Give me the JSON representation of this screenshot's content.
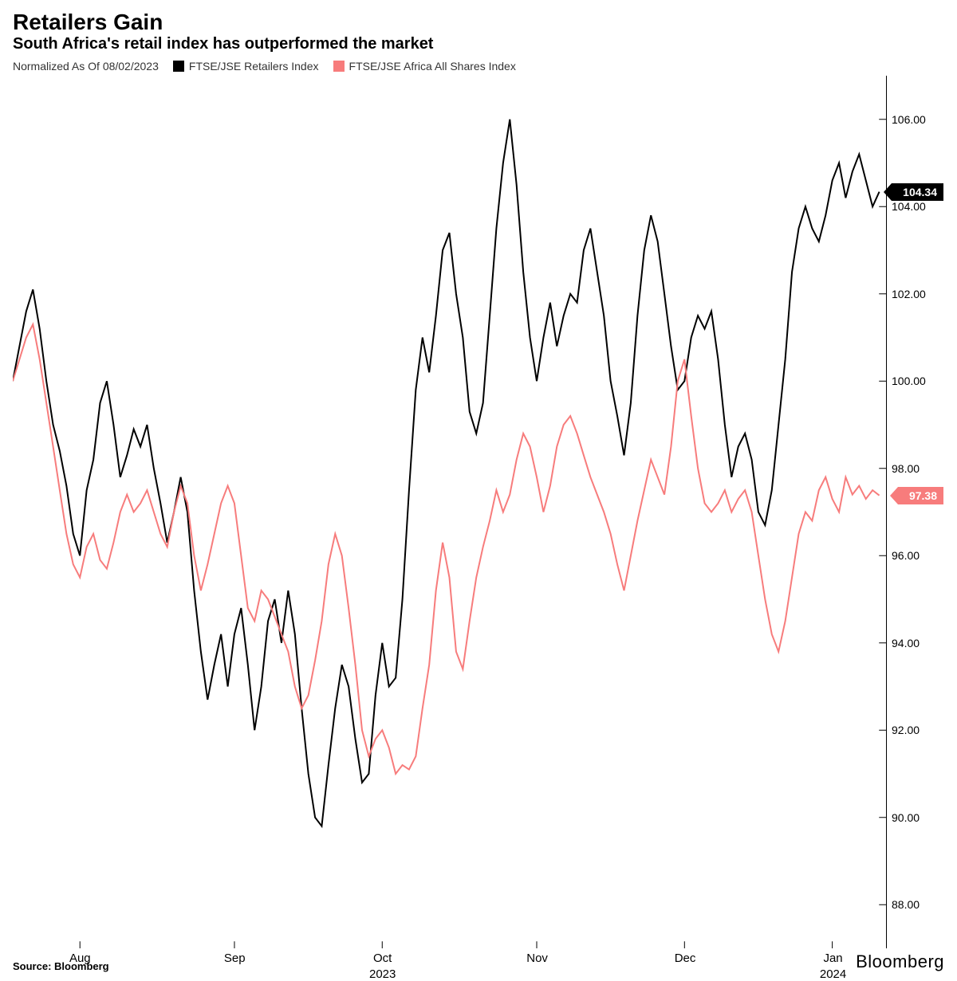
{
  "title": "Retailers Gain",
  "subtitle": "South Africa's retail index has outperformed the market",
  "legend": {
    "norm": "Normalized As Of 08/02/2023",
    "series": [
      {
        "label": "FTSE/JSE Retailers Index",
        "color": "#000000"
      },
      {
        "label": "FTSE/JSE Africa All Shares Index",
        "color": "#f77c7c"
      }
    ]
  },
  "chart": {
    "type": "line",
    "background_color": "#ffffff",
    "line_width": 2,
    "ylim": [
      87,
      107
    ],
    "yticks": [
      88,
      90,
      92,
      94,
      96,
      98,
      100,
      102,
      104,
      106
    ],
    "xlim": [
      0,
      130
    ],
    "xticks": [
      {
        "x": 10,
        "label": "Aug"
      },
      {
        "x": 33,
        "label": "Sep"
      },
      {
        "x": 55,
        "label": "Oct",
        "year": "2023"
      },
      {
        "x": 78,
        "label": "Nov"
      },
      {
        "x": 100,
        "label": "Dec"
      },
      {
        "x": 122,
        "label": "Jan",
        "year": "2024"
      }
    ],
    "end_values": [
      {
        "series": 0,
        "value": 104.34,
        "display": "104.34",
        "tag_class": "tag-black"
      },
      {
        "series": 1,
        "value": 97.38,
        "display": "97.38",
        "tag_class": "tag-red"
      }
    ],
    "series_data": [
      {
        "color": "#000000",
        "points": [
          [
            0,
            100.0
          ],
          [
            1,
            100.8
          ],
          [
            2,
            101.6
          ],
          [
            3,
            102.1
          ],
          [
            4,
            101.2
          ],
          [
            5,
            100.0
          ],
          [
            6,
            99.0
          ],
          [
            7,
            98.4
          ],
          [
            8,
            97.6
          ],
          [
            9,
            96.5
          ],
          [
            10,
            96.0
          ],
          [
            11,
            97.5
          ],
          [
            12,
            98.2
          ],
          [
            13,
            99.5
          ],
          [
            14,
            100.0
          ],
          [
            15,
            99.0
          ],
          [
            16,
            97.8
          ],
          [
            17,
            98.3
          ],
          [
            18,
            98.9
          ],
          [
            19,
            98.5
          ],
          [
            20,
            99.0
          ],
          [
            21,
            98.0
          ],
          [
            22,
            97.2
          ],
          [
            23,
            96.3
          ],
          [
            24,
            97.0
          ],
          [
            25,
            97.8
          ],
          [
            26,
            97.0
          ],
          [
            27,
            95.2
          ],
          [
            28,
            93.8
          ],
          [
            29,
            92.7
          ],
          [
            30,
            93.5
          ],
          [
            31,
            94.2
          ],
          [
            32,
            93.0
          ],
          [
            33,
            94.2
          ],
          [
            34,
            94.8
          ],
          [
            35,
            93.5
          ],
          [
            36,
            92.0
          ],
          [
            37,
            93.0
          ],
          [
            38,
            94.5
          ],
          [
            39,
            95.0
          ],
          [
            40,
            94.0
          ],
          [
            41,
            95.2
          ],
          [
            42,
            94.2
          ],
          [
            43,
            92.5
          ],
          [
            44,
            91.0
          ],
          [
            45,
            90.0
          ],
          [
            46,
            89.8
          ],
          [
            47,
            91.2
          ],
          [
            48,
            92.5
          ],
          [
            49,
            93.5
          ],
          [
            50,
            93.0
          ],
          [
            51,
            91.8
          ],
          [
            52,
            90.8
          ],
          [
            53,
            91.0
          ],
          [
            54,
            92.8
          ],
          [
            55,
            94.0
          ],
          [
            56,
            93.0
          ],
          [
            57,
            93.2
          ],
          [
            58,
            95.0
          ],
          [
            59,
            97.5
          ],
          [
            60,
            99.8
          ],
          [
            61,
            101.0
          ],
          [
            62,
            100.2
          ],
          [
            63,
            101.5
          ],
          [
            64,
            103.0
          ],
          [
            65,
            103.4
          ],
          [
            66,
            102.0
          ],
          [
            67,
            101.0
          ],
          [
            68,
            99.3
          ],
          [
            69,
            98.8
          ],
          [
            70,
            99.5
          ],
          [
            71,
            101.5
          ],
          [
            72,
            103.5
          ],
          [
            73,
            105.0
          ],
          [
            74,
            106.0
          ],
          [
            75,
            104.5
          ],
          [
            76,
            102.5
          ],
          [
            77,
            101.0
          ],
          [
            78,
            100.0
          ],
          [
            79,
            101.0
          ],
          [
            80,
            101.8
          ],
          [
            81,
            100.8
          ],
          [
            82,
            101.5
          ],
          [
            83,
            102.0
          ],
          [
            84,
            101.8
          ],
          [
            85,
            103.0
          ],
          [
            86,
            103.5
          ],
          [
            87,
            102.5
          ],
          [
            88,
            101.5
          ],
          [
            89,
            100.0
          ],
          [
            90,
            99.2
          ],
          [
            91,
            98.3
          ],
          [
            92,
            99.5
          ],
          [
            93,
            101.5
          ],
          [
            94,
            103.0
          ],
          [
            95,
            103.8
          ],
          [
            96,
            103.2
          ],
          [
            97,
            102.0
          ],
          [
            98,
            100.8
          ],
          [
            99,
            99.8
          ],
          [
            100,
            100.0
          ],
          [
            101,
            101.0
          ],
          [
            102,
            101.5
          ],
          [
            103,
            101.2
          ],
          [
            104,
            101.6
          ],
          [
            105,
            100.5
          ],
          [
            106,
            99.0
          ],
          [
            107,
            97.8
          ],
          [
            108,
            98.5
          ],
          [
            109,
            98.8
          ],
          [
            110,
            98.2
          ],
          [
            111,
            97.0
          ],
          [
            112,
            96.7
          ],
          [
            113,
            97.5
          ],
          [
            114,
            99.0
          ],
          [
            115,
            100.5
          ],
          [
            116,
            102.5
          ],
          [
            117,
            103.5
          ],
          [
            118,
            104.0
          ],
          [
            119,
            103.5
          ],
          [
            120,
            103.2
          ],
          [
            121,
            103.8
          ],
          [
            122,
            104.6
          ],
          [
            123,
            105.0
          ],
          [
            124,
            104.2
          ],
          [
            125,
            104.8
          ],
          [
            126,
            105.2
          ],
          [
            127,
            104.6
          ],
          [
            128,
            104.0
          ],
          [
            129,
            104.34
          ]
        ]
      },
      {
        "color": "#f77c7c",
        "points": [
          [
            0,
            100.0
          ],
          [
            1,
            100.5
          ],
          [
            2,
            101.0
          ],
          [
            3,
            101.3
          ],
          [
            4,
            100.5
          ],
          [
            5,
            99.5
          ],
          [
            6,
            98.5
          ],
          [
            7,
            97.5
          ],
          [
            8,
            96.5
          ],
          [
            9,
            95.8
          ],
          [
            10,
            95.5
          ],
          [
            11,
            96.2
          ],
          [
            12,
            96.5
          ],
          [
            13,
            95.9
          ],
          [
            14,
            95.7
          ],
          [
            15,
            96.3
          ],
          [
            16,
            97.0
          ],
          [
            17,
            97.4
          ],
          [
            18,
            97.0
          ],
          [
            19,
            97.2
          ],
          [
            20,
            97.5
          ],
          [
            21,
            97.0
          ],
          [
            22,
            96.5
          ],
          [
            23,
            96.2
          ],
          [
            24,
            97.0
          ],
          [
            25,
            97.6
          ],
          [
            26,
            97.2
          ],
          [
            27,
            96.0
          ],
          [
            28,
            95.2
          ],
          [
            29,
            95.8
          ],
          [
            30,
            96.5
          ],
          [
            31,
            97.2
          ],
          [
            32,
            97.6
          ],
          [
            33,
            97.2
          ],
          [
            34,
            96.0
          ],
          [
            35,
            94.8
          ],
          [
            36,
            94.5
          ],
          [
            37,
            95.2
          ],
          [
            38,
            95.0
          ],
          [
            39,
            94.6
          ],
          [
            40,
            94.2
          ],
          [
            41,
            93.8
          ],
          [
            42,
            93.0
          ],
          [
            43,
            92.5
          ],
          [
            44,
            92.8
          ],
          [
            45,
            93.6
          ],
          [
            46,
            94.5
          ],
          [
            47,
            95.8
          ],
          [
            48,
            96.5
          ],
          [
            49,
            96.0
          ],
          [
            50,
            94.8
          ],
          [
            51,
            93.5
          ],
          [
            52,
            92.0
          ],
          [
            53,
            91.4
          ],
          [
            54,
            91.8
          ],
          [
            55,
            92.0
          ],
          [
            56,
            91.6
          ],
          [
            57,
            91.0
          ],
          [
            58,
            91.2
          ],
          [
            59,
            91.1
          ],
          [
            60,
            91.4
          ],
          [
            61,
            92.5
          ],
          [
            62,
            93.5
          ],
          [
            63,
            95.2
          ],
          [
            64,
            96.3
          ],
          [
            65,
            95.5
          ],
          [
            66,
            93.8
          ],
          [
            67,
            93.4
          ],
          [
            68,
            94.5
          ],
          [
            69,
            95.5
          ],
          [
            70,
            96.2
          ],
          [
            71,
            96.8
          ],
          [
            72,
            97.5
          ],
          [
            73,
            97.0
          ],
          [
            74,
            97.4
          ],
          [
            75,
            98.2
          ],
          [
            76,
            98.8
          ],
          [
            77,
            98.5
          ],
          [
            78,
            97.8
          ],
          [
            79,
            97.0
          ],
          [
            80,
            97.6
          ],
          [
            81,
            98.5
          ],
          [
            82,
            99.0
          ],
          [
            83,
            99.2
          ],
          [
            84,
            98.8
          ],
          [
            85,
            98.3
          ],
          [
            86,
            97.8
          ],
          [
            87,
            97.4
          ],
          [
            88,
            97.0
          ],
          [
            89,
            96.5
          ],
          [
            90,
            95.8
          ],
          [
            91,
            95.2
          ],
          [
            92,
            96.0
          ],
          [
            93,
            96.8
          ],
          [
            94,
            97.5
          ],
          [
            95,
            98.2
          ],
          [
            96,
            97.8
          ],
          [
            97,
            97.4
          ],
          [
            98,
            98.5
          ],
          [
            99,
            100.0
          ],
          [
            100,
            100.5
          ],
          [
            101,
            99.2
          ],
          [
            102,
            98.0
          ],
          [
            103,
            97.2
          ],
          [
            104,
            97.0
          ],
          [
            105,
            97.2
          ],
          [
            106,
            97.5
          ],
          [
            107,
            97.0
          ],
          [
            108,
            97.3
          ],
          [
            109,
            97.5
          ],
          [
            110,
            97.0
          ],
          [
            111,
            96.0
          ],
          [
            112,
            95.0
          ],
          [
            113,
            94.2
          ],
          [
            114,
            93.8
          ],
          [
            115,
            94.5
          ],
          [
            116,
            95.5
          ],
          [
            117,
            96.5
          ],
          [
            118,
            97.0
          ],
          [
            119,
            96.8
          ],
          [
            120,
            97.5
          ],
          [
            121,
            97.8
          ],
          [
            122,
            97.3
          ],
          [
            123,
            97.0
          ],
          [
            124,
            97.8
          ],
          [
            125,
            97.4
          ],
          [
            126,
            97.6
          ],
          [
            127,
            97.3
          ],
          [
            128,
            97.5
          ],
          [
            129,
            97.38
          ]
        ]
      }
    ]
  },
  "footer": {
    "source": "Source: Bloomberg",
    "brand": "Bloomberg"
  }
}
